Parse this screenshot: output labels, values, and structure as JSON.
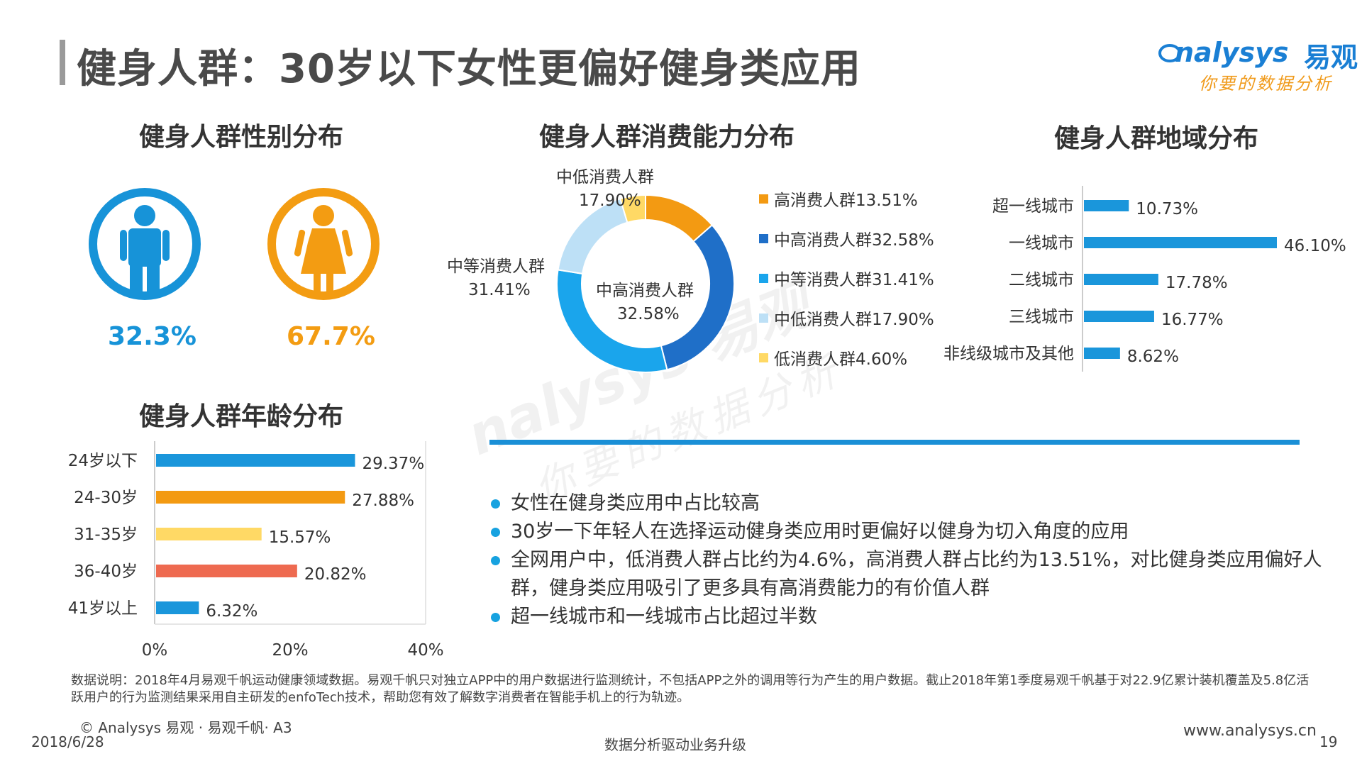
{
  "header": {
    "title": "健身人群：30岁以下女性更偏好健身类应用",
    "logo_en": "nalysys",
    "logo_cn": "易观",
    "slogan": "你要的数据分析"
  },
  "watermark": {
    "en": "nalysys 易观",
    "cn": "你要的数据分析"
  },
  "colors": {
    "male": "#1793d8",
    "female": "#f39c12",
    "blue": "#1a96db",
    "orange": "#f39a12",
    "yellow": "#ffd965",
    "red": "#ee6a50",
    "dark_blue": "#1f6fc8",
    "light_blue": "#bde0f6"
  },
  "gender": {
    "title": "健身人群性别分布",
    "male_pct": "32.3%",
    "female_pct": "67.7%",
    "male_icon": "male-person-icon",
    "female_icon": "female-person-icon"
  },
  "consumption": {
    "title": "健身人群消费能力分布",
    "labels": {
      "zhongdi_name": "中低消费人群",
      "zhongdi_val": "17.90%",
      "zhongdeng_name": "中等消费人群",
      "zhongdeng_val": "31.41%",
      "zhonggao_name": "中高消费人群",
      "zhonggao_val": "32.58%"
    },
    "legend": [
      "高消费人群13.51%",
      "中高消费人群32.58%",
      "中等消费人群31.41%",
      "中低消费人群17.90%",
      "低消费人群4.60%"
    ]
  },
  "region": {
    "title": "健身人群地域分布"
  },
  "age": {
    "title": "健身人群年龄分布"
  },
  "chart_data": [
    {
      "type": "pie",
      "title": "健身人群消费能力分布",
      "categories": [
        "高消费人群",
        "中高消费人群",
        "中等消费人群",
        "中低消费人群",
        "低消费人群"
      ],
      "values": [
        13.51,
        32.58,
        31.41,
        17.9,
        4.6
      ],
      "colors": [
        "#f39a12",
        "#1f6fc8",
        "#1aa5ec",
        "#bde0f6",
        "#ffd965"
      ],
      "legend": "right"
    },
    {
      "type": "bar",
      "title": "健身人群地域分布",
      "categories": [
        "超一线城市",
        "一线城市",
        "二线城市",
        "三线城市",
        "非线级城市及其他"
      ],
      "values": [
        10.73,
        46.1,
        17.78,
        16.77,
        8.62
      ],
      "value_labels": [
        "10.73%",
        "46.10%",
        "17.78%",
        "16.77%",
        "8.62%"
      ],
      "orientation": "horizontal",
      "xlim": [
        0,
        46.1
      ],
      "grid": false
    },
    {
      "type": "bar",
      "title": "健身人群年龄分布",
      "categories": [
        "24岁以下",
        "24-30岁",
        "31-35岁",
        "36-40岁",
        "41岁以上"
      ],
      "values": [
        29.37,
        27.88,
        15.57,
        20.82,
        6.32
      ],
      "value_labels": [
        "29.37%",
        "27.88%",
        "15.57%",
        "20.82%",
        "6.32%"
      ],
      "colors": [
        "#1a96db",
        "#f39a12",
        "#ffd965",
        "#ee6a50",
        "#1a96db"
      ],
      "orientation": "horizontal",
      "xlim": [
        0,
        40
      ],
      "xticks": [
        "0%",
        "20%",
        "40%"
      ],
      "grid": false
    }
  ],
  "bullets": [
    "女性在健身类应用中占比较高",
    "30岁一下年轻人在选择运动健身类应用时更偏好以健身为切入角度的应用",
    "全网用户中，低消费人群占比约为4.6%，高消费人群占比约为13.51%，对比健身类应用偏好人群，健身类应用吸引了更多具有高消费能力的有价值人群",
    "超一线城市和一线城市占比超过半数"
  ],
  "note": "数据说明：2018年4月易观千帆运动健康领域数据。易观千帆只对独立APP中的用户数据进行监测统计，不包括APP之外的调用等行为产生的用户数据。截止2018年第1季度易观千帆基于对22.9亿累计装机覆盖及5.8亿活跃用户的行为监测结果采用自主研发的enfoTech技术，帮助您有效了解数字消费者在智能手机上的行为轨迹。",
  "footer": {
    "copyright": "© Analysys 易观 · 易观千帆· A3",
    "date": "2018/6/28",
    "slogan": "数据分析驱动业务升级",
    "website": "www.analysys.cn",
    "page": "19"
  }
}
